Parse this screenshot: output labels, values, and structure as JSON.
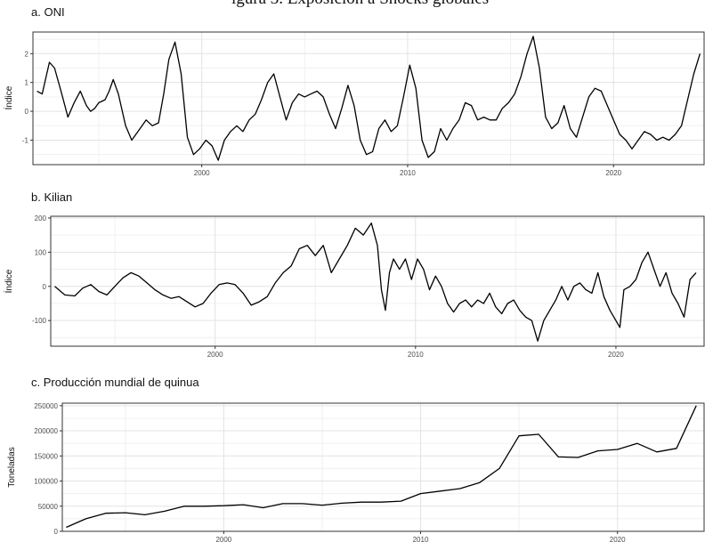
{
  "figure": {
    "cut_off_caption": "igura 3. Exposición a Shocks globales"
  },
  "chart_data": [
    {
      "type": "line",
      "title": "a. ONI",
      "xlabel": "",
      "ylabel": "Índice",
      "xlim": [
        1991.8,
        2024.4
      ],
      "ylim": [
        -1.85,
        2.75
      ],
      "x_ticks": [
        2000,
        2010,
        2020
      ],
      "x_tick_labels": [
        "2000",
        "2010",
        "2020"
      ],
      "y_ticks": [
        -1,
        0,
        1,
        2
      ],
      "y_tick_labels": [
        "-1",
        "0",
        "1",
        "2"
      ],
      "grid": true,
      "legend": "none",
      "line_color": "#000000",
      "series": [
        {
          "name": "",
          "x": [
            1992.0,
            1992.25,
            1992.6,
            1992.85,
            1993.2,
            1993.5,
            1993.8,
            1994.1,
            1994.4,
            1994.6,
            1994.8,
            1995.0,
            1995.3,
            1995.5,
            1995.7,
            1995.95,
            1996.3,
            1996.6,
            1996.9,
            1997.3,
            1997.6,
            1997.9,
            1998.15,
            1998.4,
            1998.7,
            1999.0,
            1999.3,
            1999.6,
            1999.9,
            2000.2,
            2000.5,
            2000.8,
            2001.1,
            2001.4,
            2001.7,
            2002.0,
            2002.3,
            2002.6,
            2002.9,
            2003.2,
            2003.5,
            2003.8,
            2004.1,
            2004.4,
            2004.7,
            2005.0,
            2005.3,
            2005.6,
            2005.9,
            2006.2,
            2006.5,
            2006.8,
            2007.1,
            2007.4,
            2007.7,
            2008.0,
            2008.3,
            2008.6,
            2008.9,
            2009.2,
            2009.5,
            2009.8,
            2010.1,
            2010.4,
            2010.7,
            2011.0,
            2011.3,
            2011.6,
            2011.9,
            2012.2,
            2012.5,
            2012.8,
            2013.1,
            2013.4,
            2013.7,
            2014.0,
            2014.3,
            2014.6,
            2014.9,
            2015.2,
            2015.5,
            2015.8,
            2016.1,
            2016.4,
            2016.7,
            2017.0,
            2017.3,
            2017.6,
            2017.9,
            2018.2,
            2018.5,
            2018.8,
            2019.1,
            2019.4,
            2019.7,
            2020.0,
            2020.3,
            2020.6,
            2020.9,
            2021.2,
            2021.5,
            2021.8,
            2022.1,
            2022.4,
            2022.7,
            2023.0,
            2023.3,
            2023.6,
            2023.9,
            2024.2
          ],
          "y": [
            0.7,
            0.6,
            1.7,
            1.5,
            0.6,
            -0.2,
            0.3,
            0.7,
            0.2,
            0.0,
            0.1,
            0.3,
            0.4,
            0.7,
            1.1,
            0.6,
            -0.5,
            -1.0,
            -0.7,
            -0.3,
            -0.5,
            -0.4,
            0.6,
            1.8,
            2.4,
            1.3,
            -0.9,
            -1.5,
            -1.3,
            -1.0,
            -1.2,
            -1.7,
            -1.0,
            -0.7,
            -0.5,
            -0.7,
            -0.3,
            -0.1,
            0.4,
            1.0,
            1.3,
            0.5,
            -0.3,
            0.3,
            0.6,
            0.5,
            0.6,
            0.7,
            0.5,
            -0.1,
            -0.6,
            0.1,
            0.9,
            0.2,
            -1.0,
            -1.5,
            -1.4,
            -0.6,
            -0.3,
            -0.7,
            -0.5,
            0.5,
            1.6,
            0.8,
            -1.0,
            -1.6,
            -1.4,
            -0.6,
            -1.0,
            -0.6,
            -0.3,
            0.3,
            0.2,
            -0.3,
            -0.2,
            -0.3,
            -0.3,
            0.1,
            0.3,
            0.6,
            1.2,
            2.0,
            2.6,
            1.5,
            -0.2,
            -0.6,
            -0.4,
            0.2,
            -0.6,
            -0.9,
            -0.2,
            0.5,
            0.8,
            0.7,
            0.2,
            -0.3,
            -0.8,
            -1.0,
            -1.3,
            -1.0,
            -0.7,
            -0.8,
            -1.0,
            -0.9,
            -1.0,
            -0.8,
            -0.5,
            0.4,
            1.3,
            2.0
          ]
        }
      ]
    },
    {
      "type": "line",
      "title": "b. Kilian",
      "xlabel": "",
      "ylabel": "Índice",
      "xlim": [
        1991.8,
        2024.4
      ],
      "ylim": [
        -175,
        205
      ],
      "x_ticks": [
        2000,
        2010,
        2020
      ],
      "x_tick_labels": [
        "2000",
        "2010",
        "2020"
      ],
      "y_ticks": [
        -100,
        0,
        100,
        200
      ],
      "y_tick_labels": [
        "-100",
        "0",
        "100",
        "200"
      ],
      "grid": true,
      "legend": "none",
      "line_color": "#000000",
      "series": [
        {
          "name": "",
          "x": [
            1992.0,
            1992.5,
            1993.0,
            1993.4,
            1993.8,
            1994.2,
            1994.6,
            1995.0,
            1995.4,
            1995.8,
            1996.2,
            1996.6,
            1997.0,
            1997.4,
            1997.8,
            1998.2,
            1998.6,
            1999.0,
            1999.4,
            1999.8,
            2000.2,
            2000.6,
            2001.0,
            2001.4,
            2001.8,
            2002.2,
            2002.6,
            2003.0,
            2003.4,
            2003.8,
            2004.2,
            2004.6,
            2005.0,
            2005.4,
            2005.8,
            2006.2,
            2006.6,
            2007.0,
            2007.4,
            2007.8,
            2008.1,
            2008.3,
            2008.5,
            2008.7,
            2008.9,
            2009.2,
            2009.5,
            2009.8,
            2010.1,
            2010.4,
            2010.7,
            2011.0,
            2011.3,
            2011.6,
            2011.9,
            2012.2,
            2012.5,
            2012.8,
            2013.1,
            2013.4,
            2013.7,
            2014.0,
            2014.3,
            2014.6,
            2014.9,
            2015.2,
            2015.5,
            2015.8,
            2016.1,
            2016.4,
            2016.7,
            2017.0,
            2017.3,
            2017.6,
            2017.9,
            2018.2,
            2018.5,
            2018.8,
            2019.1,
            2019.4,
            2019.7,
            2020.0,
            2020.2,
            2020.4,
            2020.7,
            2021.0,
            2021.3,
            2021.6,
            2021.9,
            2022.2,
            2022.5,
            2022.8,
            2023.1,
            2023.4,
            2023.7,
            2024.0
          ],
          "y": [
            0,
            -25,
            -28,
            -5,
            5,
            -15,
            -25,
            0,
            25,
            40,
            30,
            10,
            -10,
            -25,
            -35,
            -30,
            -45,
            -60,
            -50,
            -20,
            5,
            10,
            5,
            -20,
            -55,
            -45,
            -30,
            10,
            40,
            60,
            110,
            120,
            90,
            120,
            40,
            80,
            120,
            170,
            150,
            185,
            120,
            -10,
            -70,
            40,
            80,
            50,
            80,
            20,
            80,
            50,
            -10,
            30,
            0,
            -50,
            -75,
            -50,
            -40,
            -60,
            -40,
            -50,
            -20,
            -60,
            -80,
            -50,
            -40,
            -70,
            -90,
            -100,
            -160,
            -100,
            -70,
            -40,
            0,
            -40,
            0,
            10,
            -10,
            -20,
            40,
            -30,
            -70,
            -100,
            -120,
            -10,
            0,
            20,
            70,
            100,
            50,
            0,
            40,
            -20,
            -50,
            -90,
            20,
            40
          ]
        }
      ]
    },
    {
      "type": "line",
      "title": "c. Producción mundial de quinua",
      "xlabel": "",
      "ylabel": "Toneladas",
      "xlim": [
        1991.8,
        2024.4
      ],
      "ylim": [
        0,
        255000
      ],
      "x_ticks": [
        2000,
        2010,
        2020
      ],
      "x_tick_labels": [
        "2000",
        "2010",
        "2020"
      ],
      "y_ticks": [
        0,
        50000,
        100000,
        150000,
        200000,
        250000
      ],
      "y_tick_labels": [
        "0",
        "50000",
        "100000",
        "150000",
        "200000",
        "250000"
      ],
      "grid": true,
      "legend": "none",
      "line_color": "#000000",
      "series": [
        {
          "name": "",
          "x": [
            1992,
            1993,
            1994,
            1995,
            1996,
            1997,
            1998,
            1999,
            2000,
            2001,
            2002,
            2003,
            2004,
            2005,
            2006,
            2007,
            2008,
            2009,
            2010,
            2011,
            2012,
            2013,
            2014,
            2015,
            2016,
            2017,
            2018,
            2019,
            2020,
            2021,
            2022,
            2023,
            2024
          ],
          "y": [
            8000,
            25000,
            36000,
            37000,
            33000,
            40000,
            50000,
            50000,
            51000,
            53000,
            47000,
            55000,
            55000,
            52000,
            56000,
            58000,
            58000,
            60000,
            75000,
            80000,
            85000,
            97000,
            125000,
            190000,
            193000,
            148000,
            147000,
            160000,
            163000,
            175000,
            158000,
            165000,
            250000
          ]
        }
      ]
    }
  ]
}
